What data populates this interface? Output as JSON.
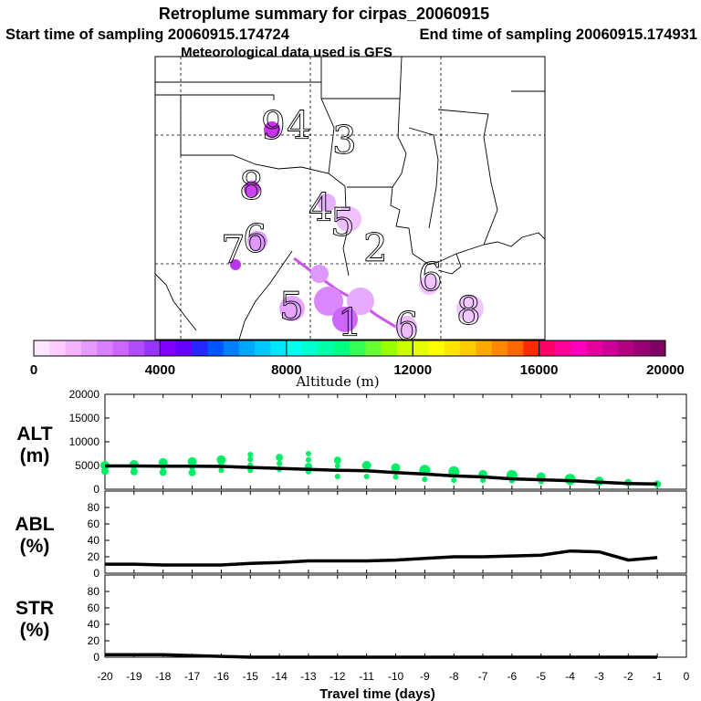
{
  "header": {
    "title": "Retroplume summary for cirpas_20060915",
    "start_label": "Start time of sampling 20060915.174724",
    "end_label": "End time of sampling 20060915.174931",
    "met_label": "Meteorological data used is GFS"
  },
  "colorbar": {
    "title": "Altitude (m)",
    "ticks": [
      "0",
      "4000",
      "8000",
      "12000",
      "16000",
      "20000"
    ],
    "colors": [
      "#ffe6ff",
      "#ffccff",
      "#f5b3ff",
      "#e699ff",
      "#d97fff",
      "#cc66ff",
      "#b24dff",
      "#9933ff",
      "#8000ff",
      "#6600ff",
      "#2626ff",
      "#0055ff",
      "#0080ff",
      "#00a6ff",
      "#00c8ff",
      "#00e6ff",
      "#00ffee",
      "#00ffcc",
      "#00ffa6",
      "#00ff80",
      "#33ff55",
      "#66ff33",
      "#99ff00",
      "#ccff00",
      "#e6ff00",
      "#ffff00",
      "#ffe600",
      "#ffcc00",
      "#ffaa00",
      "#ff8800",
      "#ff6600",
      "#ff2a00",
      "#ff0066",
      "#ff0099",
      "#ff00bb",
      "#e6009e",
      "#cc0099",
      "#b30080",
      "#990073",
      "#800066"
    ]
  },
  "map": {
    "day_labels": [
      {
        "text": "9",
        "color": "#cc44ee"
      },
      {
        "text": "4",
        "color": "#dd99ff"
      },
      {
        "text": "3",
        "color": "#ffffff"
      },
      {
        "text": "8",
        "color": "#cc44ee"
      },
      {
        "text": "4",
        "color": "#dd99ff"
      },
      {
        "text": "5",
        "color": "#dd99ff"
      },
      {
        "text": "6",
        "color": "#dd99ff"
      },
      {
        "text": "7",
        "color": "#dd99ff"
      },
      {
        "text": "2",
        "color": "#ffffff"
      },
      {
        "text": "6",
        "color": "#dd99ff"
      },
      {
        "text": "8",
        "color": "#dd99ff"
      },
      {
        "text": "5",
        "color": "#dd99ff"
      },
      {
        "text": "6",
        "color": "#dd99ff"
      },
      {
        "text": "1",
        "color": "#dd99ff"
      }
    ]
  },
  "chart_data": [
    {
      "type": "scatter",
      "name": "ALT",
      "ylabel": "ALT (m)",
      "ylabel_lines": [
        "ALT",
        "(m)"
      ],
      "ylim": [
        0,
        20000
      ],
      "yticks": [
        0,
        5000,
        10000,
        15000,
        20000
      ],
      "xlim": [
        -20,
        0
      ],
      "mean_line": {
        "x": [
          -20,
          -19,
          -18,
          -17,
          -16,
          -15,
          -14,
          -13,
          -12,
          -11,
          -10,
          -9,
          -8,
          -7,
          -6,
          -5,
          -4,
          -3,
          -2,
          -1
        ],
        "y": [
          4900,
          4900,
          4850,
          4850,
          4800,
          4600,
          4400,
          4200,
          4000,
          3900,
          3500,
          3200,
          2800,
          2600,
          2200,
          2000,
          1800,
          1500,
          1200,
          1100
        ]
      },
      "points": {
        "x": [
          -20,
          -20,
          -19,
          -19,
          -18,
          -18,
          -18,
          -17,
          -17,
          -17,
          -16,
          -16,
          -16,
          -15,
          -15,
          -15,
          -15,
          -14,
          -14,
          -14,
          -13,
          -13,
          -13,
          -13,
          -12,
          -12,
          -12,
          -11,
          -11,
          -10,
          -10,
          -9,
          -9,
          -8,
          -8,
          -7,
          -7,
          -6,
          -6,
          -5,
          -5,
          -4,
          -4,
          -3,
          -3,
          -2,
          -2,
          -1
        ],
        "y": [
          5000,
          3800,
          5200,
          3700,
          5600,
          4700,
          3600,
          5800,
          4600,
          3500,
          6200,
          5300,
          4000,
          7300,
          6300,
          5100,
          4000,
          6700,
          5400,
          4200,
          7500,
          6200,
          4800,
          3700,
          6100,
          4900,
          2700,
          5000,
          2700,
          4500,
          2600,
          4000,
          2100,
          3700,
          1900,
          3100,
          1900,
          2900,
          1800,
          2600,
          1600,
          2100,
          1600,
          1700,
          1300,
          1400,
          1200,
          1100
        ],
        "r": [
          5,
          4,
          5,
          4,
          5,
          3,
          4,
          5,
          3,
          4,
          5,
          3,
          3,
          3,
          3,
          3,
          3,
          4,
          3,
          3,
          3,
          3,
          4,
          3,
          4,
          3,
          3,
          5,
          3,
          5,
          3,
          6,
          3,
          6,
          3,
          5,
          3,
          6,
          3,
          5,
          3,
          6,
          4,
          5,
          3,
          4,
          3,
          4
        ]
      },
      "color": "#00ee66"
    },
    {
      "type": "line",
      "name": "ABL",
      "ylabel": "ABL (%)",
      "ylabel_lines": [
        "ABL",
        "(%)"
      ],
      "ylim": [
        0,
        100
      ],
      "yticks": [
        0,
        20,
        40,
        60,
        80
      ],
      "xlim": [
        -20,
        0
      ],
      "x": [
        -20,
        -19,
        -18,
        -17,
        -16,
        -15,
        -14,
        -13,
        -12,
        -11,
        -10,
        -9,
        -8,
        -7,
        -6,
        -5,
        -4,
        -3,
        -2,
        -1
      ],
      "y": [
        11,
        11,
        10,
        10,
        10,
        12,
        13,
        15,
        15,
        15,
        16,
        18,
        20,
        20,
        21,
        22,
        27,
        26,
        16,
        19
      ]
    },
    {
      "type": "line",
      "name": "STR",
      "ylabel": "STR (%)",
      "ylabel_lines": [
        "STR",
        "(%)"
      ],
      "ylim": [
        0,
        100
      ],
      "yticks": [
        0,
        20,
        40,
        60,
        80
      ],
      "xlim": [
        -20,
        0
      ],
      "xlabel": "Travel time (days)",
      "xtick_labels": [
        "-20",
        "-19",
        "-18",
        "-17",
        "-16",
        "-15",
        "-14",
        "-13",
        "-12",
        "-11",
        "-10",
        "-9",
        "-8",
        "-7",
        "-6",
        "-5",
        "-4",
        "-3",
        "-2",
        "-1",
        "0"
      ],
      "x": [
        -20,
        -19,
        -18,
        -17,
        -16,
        -15,
        -14,
        -13,
        -12,
        -11,
        -10,
        -9,
        -8,
        -7,
        -6,
        -5,
        -4,
        -3,
        -2,
        -1
      ],
      "y": [
        3,
        3,
        3,
        2,
        1,
        0,
        0,
        0,
        0,
        0,
        0,
        0,
        0,
        0,
        0,
        0,
        0,
        0,
        0,
        0
      ]
    }
  ]
}
